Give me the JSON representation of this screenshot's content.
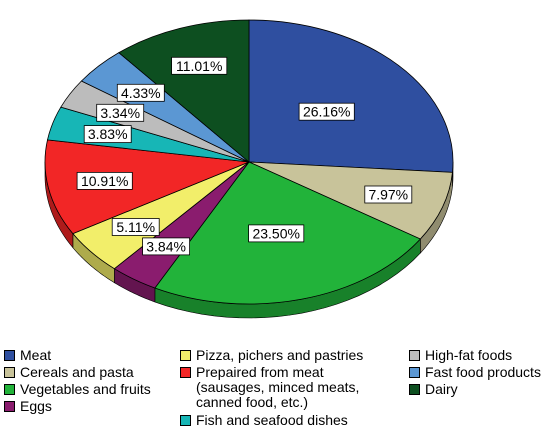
{
  "chart_data": {
    "type": "pie",
    "style": "3d-tilted",
    "slices": [
      {
        "label": "Meat",
        "value": 26.16,
        "display": "26.16%",
        "color": "#2f4fa0"
      },
      {
        "label": "Cereals and pasta",
        "value": 7.97,
        "display": "7.97%",
        "color": "#c8c39a"
      },
      {
        "label": "Vegetables and fruits",
        "value": 23.5,
        "display": "23.50%",
        "color": "#22b33a"
      },
      {
        "label": "Eggs",
        "value": 3.84,
        "display": "3.84%",
        "color": "#8a1c6e"
      },
      {
        "label": "Pizza, pichers and pastries",
        "value": 5.11,
        "display": "5.11%",
        "color": "#f2ee6a"
      },
      {
        "label": "Prepaired from meat\n(sausages, minced meats,\ncanned food, etc.)",
        "value": 10.91,
        "display": "10.91%",
        "color": "#f22626"
      },
      {
        "label": "Fish and seafood dishes",
        "value": 3.83,
        "display": "3.83%",
        "color": "#17b6b6"
      },
      {
        "label": "High-fat foods",
        "value": 3.34,
        "display": "3.34%",
        "color": "#bcbcbc"
      },
      {
        "label": "Fast food products",
        "value": 4.33,
        "display": "4.33%",
        "color": "#5b97d3"
      },
      {
        "label": "Dairy",
        "value": 11.01,
        "display": "11.01%",
        "color": "#0d4f20"
      }
    ],
    "legend_position": "bottom"
  }
}
